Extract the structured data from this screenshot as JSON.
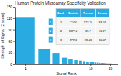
{
  "chart_data": {
    "type": "bar",
    "title": "Human Protein Microarray Specificity Validation",
    "xlabel": "Signal Rank",
    "ylabel": "Strength of Signal (Z score)",
    "x": [
      1,
      2,
      3,
      4,
      5,
      6,
      7,
      8,
      9,
      10,
      11,
      12,
      13,
      14,
      15,
      16,
      17,
      18,
      19,
      20,
      21,
      22,
      23,
      24,
      25
    ],
    "values": [
      122.74,
      39.7,
      28.43,
      18.5,
      14.2,
      11.0,
      9.5,
      8.2,
      7.1,
      6.3,
      5.5,
      4.9,
      4.4,
      3.9,
      3.5,
      3.2,
      2.9,
      2.7,
      2.5,
      2.3,
      2.1,
      1.9,
      1.8,
      1.7,
      1.6
    ],
    "color": "#29ABE2",
    "log": "x",
    "xlim": [
      0.7,
      26
    ],
    "xticks": [
      1,
      10,
      20
    ],
    "ylim": [
      0,
      150
    ],
    "yticks": [
      0,
      30,
      60,
      90,
      120,
      150
    ],
    "grid": false,
    "table": {
      "columns": [
        "Rank",
        "Protein",
        "Z score",
        "S score"
      ],
      "rows": [
        [
          "1",
          "CD10",
          "122.74",
          "83.04"
        ],
        [
          "2",
          "RLPL2",
          "39.7",
          "11.27"
        ],
        [
          "3",
          "ZPR1",
          "28.43",
          "16.47"
        ]
      ],
      "row_labels": [
        "1",
        "2",
        "3"
      ],
      "color": "#29ABE2"
    }
  }
}
